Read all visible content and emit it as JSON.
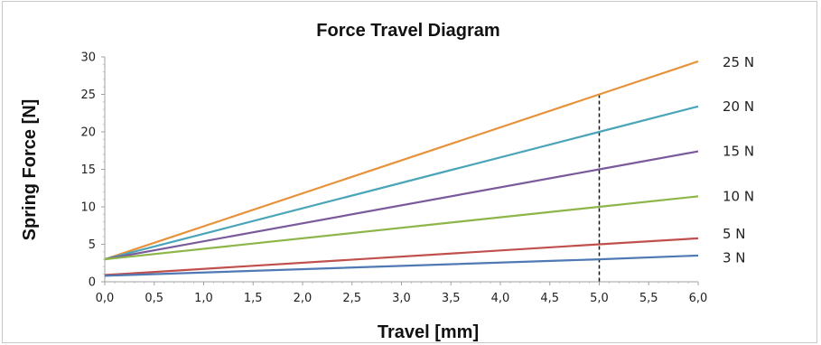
{
  "chart_data": {
    "type": "line",
    "title": "Force Travel Diagram",
    "xlabel": "Travel [mm]",
    "ylabel": "Spring Force [N]",
    "xlim": [
      0,
      6
    ],
    "ylim": [
      0,
      30
    ],
    "x_ticks": [
      "0,0",
      "0,5",
      "1,0",
      "1,5",
      "2,0",
      "2,5",
      "3,0",
      "3,5",
      "4,0",
      "4,5",
      "5,0",
      "5,5",
      "6,0"
    ],
    "y_ticks": [
      "0",
      "5",
      "10",
      "15",
      "20",
      "25",
      "30"
    ],
    "grid": false,
    "reference_line": {
      "x": 5.0,
      "style": "dashed"
    },
    "series": [
      {
        "name": "25 N",
        "color": "#e8923a",
        "x": [
          0,
          5,
          6
        ],
        "values": [
          3,
          25,
          29.4
        ]
      },
      {
        "name": "20 N",
        "color": "#4aa5b8",
        "x": [
          0,
          5,
          6
        ],
        "values": [
          3,
          20,
          23.4
        ]
      },
      {
        "name": "15 N",
        "color": "#7b5a9c",
        "x": [
          0,
          5,
          6
        ],
        "values": [
          3,
          15,
          17.4
        ]
      },
      {
        "name": "10 N",
        "color": "#8db54a",
        "x": [
          0,
          5,
          6
        ],
        "values": [
          3,
          10,
          11.4
        ]
      },
      {
        "name": "5 N",
        "color": "#c0504d",
        "x": [
          0,
          5,
          6
        ],
        "values": [
          0.9,
          5,
          5.8
        ]
      },
      {
        "name": "3 N",
        "color": "#4f79b5",
        "x": [
          0,
          5,
          6
        ],
        "values": [
          0.8,
          3,
          3.5
        ]
      }
    ]
  }
}
